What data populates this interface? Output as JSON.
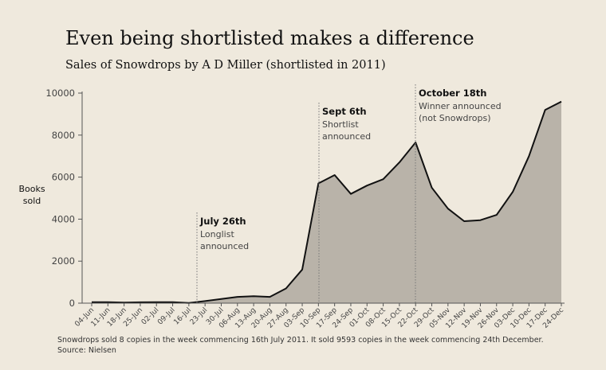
{
  "chart_data": {
    "type": "area",
    "title": "Even being shortlisted makes a difference",
    "subtitle": "Sales of Snowdrops by A D Miller (shortlisted in 2011)",
    "y_label": "Books sold",
    "categories": [
      "04-Jun",
      "11-Jun",
      "18-Jun",
      "25-Jun",
      "02-Jul",
      "09-Jul",
      "16-Jul",
      "23-Jul",
      "30-Jul",
      "06-Aug",
      "13-Aug",
      "20-Aug",
      "27-Aug",
      "03-Sep",
      "10-Sep",
      "17-Sep",
      "24-Sep",
      "01-Oct",
      "08-Oct",
      "15-Oct",
      "22-Oct",
      "29-Oct",
      "05-Nov",
      "12-Nov",
      "19-Nov",
      "26-Nov",
      "03-Dec",
      "10-Dec",
      "17-Dec",
      "24-Dec"
    ],
    "values": [
      50,
      50,
      30,
      40,
      50,
      50,
      8,
      100,
      200,
      300,
      330,
      300,
      700,
      1600,
      5700,
      6100,
      5200,
      5600,
      5900,
      6700,
      7650,
      5500,
      4500,
      3900,
      3950,
      4200,
      5300,
      7000,
      9200,
      9593
    ],
    "ylim": [
      0,
      10000
    ],
    "yticks": [
      0,
      2000,
      4000,
      6000,
      8000,
      10000
    ],
    "fill_color": "#b9b3a9",
    "line_color": "#111111",
    "annotations": [
      {
        "title": "July 26th",
        "lines": [
          "Longlist",
          "announced"
        ]
      },
      {
        "title": "Sept 6th",
        "lines": [
          "Shortlist",
          "announced"
        ]
      },
      {
        "title": "October 18th",
        "lines": [
          "Winner announced",
          "(not Snowdrops)"
        ]
      }
    ],
    "footnote": "Snowdrops sold 8 copies in the week commencing 16th July 2011. It sold 9593 copies in the week commencing 24th December.",
    "source": "Source: Nielsen"
  }
}
